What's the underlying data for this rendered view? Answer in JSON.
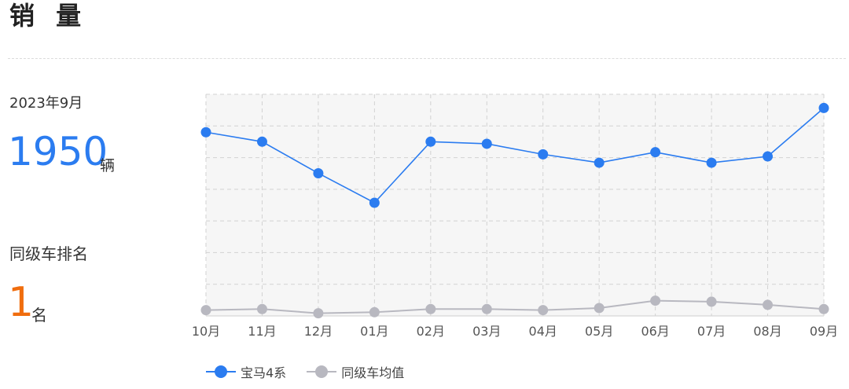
{
  "header": {
    "title": "销 量"
  },
  "summary": {
    "period": "2023年9月",
    "sales_value": "1950",
    "sales_unit": "辆",
    "rank_label": "同级车排名",
    "rank_value": "1",
    "rank_unit": "名"
  },
  "colors": {
    "primary": "#2b7cf0",
    "secondary": "#b8b8c0",
    "rank": "#f06d0e"
  },
  "chart_data": {
    "type": "line",
    "categories": [
      "10月",
      "11月",
      "12月",
      "01月",
      "02月",
      "03月",
      "04月",
      "05月",
      "06月",
      "07月",
      "08月",
      "09月"
    ],
    "series": [
      {
        "name": "宝马4系",
        "color": "#2b7cf0",
        "values": [
          1720,
          1630,
          1330,
          1050,
          1630,
          1610,
          1510,
          1430,
          1530,
          1430,
          1490,
          1950
        ]
      },
      {
        "name": "同级车均值",
        "color": "#b8b8c0",
        "values": [
          30,
          40,
          0,
          10,
          40,
          40,
          30,
          50,
          120,
          110,
          80,
          40
        ]
      }
    ],
    "ylim": [
      -25,
      2080
    ],
    "grid": true,
    "legend_position": "bottom-left"
  }
}
